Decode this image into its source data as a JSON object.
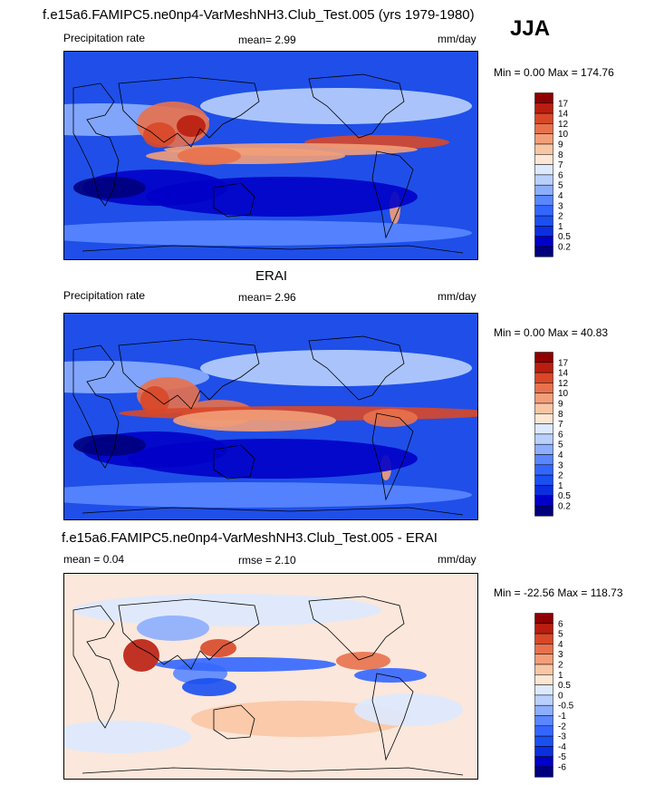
{
  "header": {
    "title": "f.e15a6.FAMIPC5.ne0np4-VarMeshNH3.Club_Test.005 (yrs 1979-1980)",
    "season": "JJA"
  },
  "panels": [
    {
      "id": "model",
      "title": "",
      "left_label": "Precipitation rate",
      "center_label": "mean=   2.99",
      "units": "mm/day",
      "minmax": "Min =    0.00 Max = 174.76",
      "palette": [
        "#00007d",
        "#0000c8",
        "#0b2ee0",
        "#1a4ff0",
        "#3366ff",
        "#5a86ff",
        "#8caefd",
        "#b9d0fd",
        "#dde9fe",
        "#fde6d3",
        "#f9c6a5",
        "#f29e79",
        "#e8714d",
        "#d84828",
        "#b91e10",
        "#8e0000"
      ],
      "labels": [
        "17",
        "14",
        "12",
        "10",
        "9",
        "8",
        "7",
        "6",
        "5",
        "4",
        "3",
        "2",
        "1",
        "0.5",
        "0.2"
      ],
      "background": "#1f4fe8"
    },
    {
      "id": "obs",
      "title": "ERAI",
      "left_label": "Precipitation rate",
      "center_label": "mean=   2.96",
      "units": "mm/day",
      "minmax": "Min =    0.00 Max =  40.83",
      "palette": [
        "#00007d",
        "#0000c8",
        "#0b2ee0",
        "#1a4ff0",
        "#3366ff",
        "#5a86ff",
        "#8caefd",
        "#b9d0fd",
        "#dde9fe",
        "#fde6d3",
        "#f9c6a5",
        "#f29e79",
        "#e8714d",
        "#d84828",
        "#b91e10",
        "#8e0000"
      ],
      "labels": [
        "17",
        "14",
        "12",
        "10",
        "9",
        "8",
        "7",
        "6",
        "5",
        "4",
        "3",
        "2",
        "1",
        "0.5",
        "0.2"
      ],
      "background": "#1f4fe8"
    },
    {
      "id": "diff",
      "title": "f.e15a6.FAMIPC5.ne0np4-VarMeshNH3.Club_Test.005 - ERAI",
      "left_label": "mean =   0.04",
      "center_label": "rmse =   2.10",
      "units": "mm/day",
      "minmax": "Min = -22.56 Max = 118.73",
      "palette": [
        "#00007d",
        "#0000c8",
        "#0b2ee0",
        "#1a4ff0",
        "#3366ff",
        "#5a86ff",
        "#8caefd",
        "#b9d0fd",
        "#dde9fe",
        "#fde6d3",
        "#f9c6a5",
        "#f29e79",
        "#e8714d",
        "#d84828",
        "#b91e10",
        "#8e0000"
      ],
      "labels": [
        "6",
        "5",
        "4",
        "3",
        "2",
        "1",
        "0.5",
        "0",
        "-0.5",
        "-1",
        "-2",
        "-3",
        "-4",
        "-5",
        "-6"
      ],
      "background": "#fbe7db"
    }
  ],
  "chart_data": [
    {
      "type": "heatmap",
      "title": "",
      "variable": "Precipitation rate",
      "units": "mm/day",
      "mean": 2.99,
      "min": 0.0,
      "max": 174.76,
      "colorbar_levels": [
        0.2,
        0.5,
        1,
        2,
        3,
        4,
        5,
        6,
        7,
        8,
        9,
        10,
        12,
        14,
        17
      ]
    },
    {
      "type": "heatmap",
      "title": "ERAI",
      "variable": "Precipitation rate",
      "units": "mm/day",
      "mean": 2.96,
      "min": 0.0,
      "max": 40.83,
      "colorbar_levels": [
        0.2,
        0.5,
        1,
        2,
        3,
        4,
        5,
        6,
        7,
        8,
        9,
        10,
        12,
        14,
        17
      ]
    },
    {
      "type": "heatmap",
      "title": "f.e15a6.FAMIPC5.ne0np4-VarMeshNH3.Club_Test.005 - ERAI",
      "units": "mm/day",
      "mean": 0.04,
      "rmse": 2.1,
      "min": -22.56,
      "max": 118.73,
      "colorbar_levels": [
        -6,
        -5,
        -4,
        -3,
        -2,
        -1,
        -0.5,
        0,
        0.5,
        1,
        2,
        3,
        4,
        5,
        6
      ]
    }
  ]
}
